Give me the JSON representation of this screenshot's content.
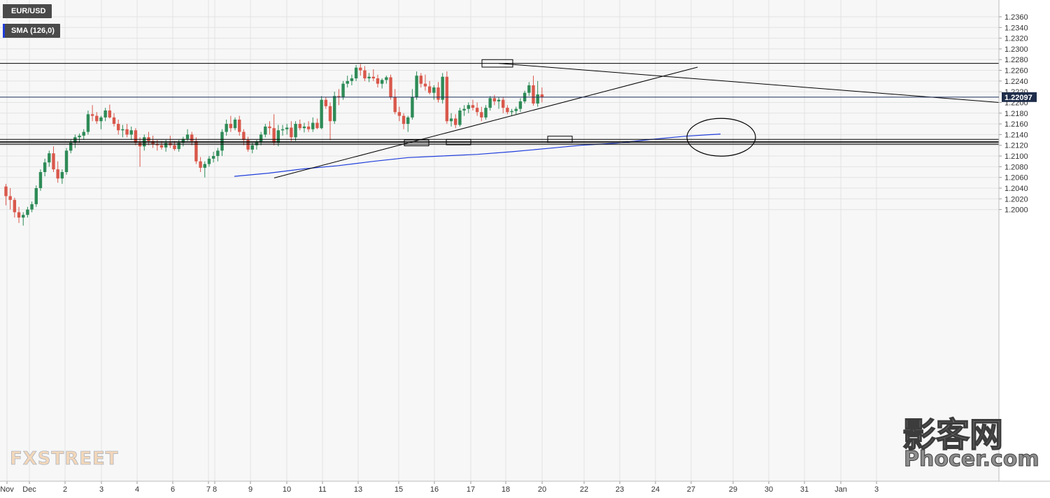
{
  "legend": {
    "symbol": "EUR/USD",
    "sma_label": "SMA (126,0)",
    "symbol_swatch": "#4a4a4a",
    "sma_swatch": "#1f3ddb"
  },
  "colors": {
    "background": "#f7f7f7",
    "axis_background": "#ffffff",
    "grid": "#e3e3e3",
    "bull": "#2e8b57",
    "bear": "#d9584b",
    "sma": "#1f3ddb",
    "price_line": "#1a2d5a",
    "price_tag": "#1f2d4a",
    "drawings": "#000000"
  },
  "watermarks": {
    "left": "FXSTREET",
    "right_cn": "影客网",
    "right_site": "Phocer.com"
  },
  "chart_data": {
    "type": "candlestick",
    "timeframe": "1h",
    "ylim": [
      1.1995,
      1.2375
    ],
    "y_ticks": [
      "1.2360",
      "1.2340",
      "1.2320",
      "1.2300",
      "1.2280",
      "1.2260",
      "1.2240",
      "1.2220",
      "1.2200",
      "1.2180",
      "1.2160",
      "1.2140",
      "1.2120",
      "1.2100",
      "1.2080",
      "1.2060",
      "1.2040",
      "1.2020",
      "1.2000"
    ],
    "x_ticks": [
      "Nov",
      "Dec",
      "2",
      "3",
      "4",
      "6",
      "7",
      "8",
      "9",
      "10",
      "11",
      "13",
      "15",
      "16",
      "17",
      "18",
      "20",
      "22",
      "23",
      "24",
      "27",
      "29",
      "30",
      "31",
      "Jan",
      "3"
    ],
    "grid": true,
    "current_price": "1.22097",
    "series": [
      {
        "kind": "ohlc",
        "values": [
          [
            1.2043,
            1.2048,
            1.2008,
            1.2025
          ],
          [
            1.2025,
            1.204,
            1.2,
            1.2018
          ],
          [
            1.2018,
            1.2022,
            1.1985,
            1.1995
          ],
          [
            1.1995,
            1.2005,
            1.1975,
            1.1985
          ],
          [
            1.1985,
            1.1995,
            1.197,
            1.199
          ],
          [
            1.199,
            1.2005,
            1.1985,
            1.2
          ],
          [
            1.2,
            1.2015,
            1.1995,
            1.201
          ],
          [
            1.201,
            1.2045,
            1.2005,
            1.204
          ],
          [
            1.204,
            1.2075,
            1.2035,
            1.207
          ],
          [
            1.207,
            1.2095,
            1.2062,
            1.2088
          ],
          [
            1.2088,
            1.211,
            1.208,
            1.2105
          ],
          [
            1.2105,
            1.2118,
            1.207,
            1.2075
          ],
          [
            1.2075,
            1.209,
            1.205,
            1.2058
          ],
          [
            1.2058,
            1.2075,
            1.2048,
            1.207
          ],
          [
            1.207,
            1.2115,
            1.2065,
            1.211
          ],
          [
            1.211,
            1.213,
            1.2105,
            1.2125
          ],
          [
            1.2125,
            1.214,
            1.2115,
            1.2135
          ],
          [
            1.2135,
            1.2142,
            1.2125,
            1.2138
          ],
          [
            1.2138,
            1.215,
            1.213,
            1.2145
          ],
          [
            1.2145,
            1.2185,
            1.214,
            1.2178
          ],
          [
            1.2178,
            1.2195,
            1.2165,
            1.2175
          ],
          [
            1.2175,
            1.2182,
            1.216,
            1.2165
          ],
          [
            1.2165,
            1.2175,
            1.215,
            1.2172
          ],
          [
            1.2172,
            1.219,
            1.2165,
            1.2185
          ],
          [
            1.2185,
            1.2196,
            1.217,
            1.2172
          ],
          [
            1.2172,
            1.218,
            1.2155,
            1.216
          ],
          [
            1.216,
            1.2168,
            1.214,
            1.2148
          ],
          [
            1.2148,
            1.2158,
            1.2135,
            1.215
          ],
          [
            1.215,
            1.216,
            1.2135,
            1.214
          ],
          [
            1.214,
            1.2155,
            1.213,
            1.2148
          ],
          [
            1.2148,
            1.2152,
            1.212,
            1.2125
          ],
          [
            1.2125,
            1.2135,
            1.208,
            1.2118
          ],
          [
            1.2118,
            1.214,
            1.211,
            1.2135
          ],
          [
            1.2135,
            1.2145,
            1.212,
            1.2128
          ],
          [
            1.2128,
            1.2138,
            1.2115,
            1.2122
          ],
          [
            1.2122,
            1.213,
            1.211,
            1.212
          ],
          [
            1.212,
            1.2128,
            1.2112,
            1.2116
          ],
          [
            1.2116,
            1.213,
            1.2108,
            1.2124
          ],
          [
            1.2124,
            1.2138,
            1.2115,
            1.212
          ],
          [
            1.212,
            1.2128,
            1.211,
            1.2113
          ],
          [
            1.2113,
            1.213,
            1.2108,
            1.2125
          ],
          [
            1.2125,
            1.2136,
            1.2118,
            1.2132
          ],
          [
            1.2132,
            1.215,
            1.2128,
            1.214
          ],
          [
            1.214,
            1.2145,
            1.212,
            1.2128
          ],
          [
            1.2128,
            1.2135,
            1.2085,
            1.209
          ],
          [
            1.209,
            1.2098,
            1.207,
            1.2078
          ],
          [
            1.2078,
            1.209,
            1.206,
            1.2085
          ],
          [
            1.2085,
            1.21,
            1.208,
            1.2095
          ],
          [
            1.2095,
            1.2108,
            1.2088,
            1.21
          ],
          [
            1.21,
            1.2115,
            1.209,
            1.211
          ],
          [
            1.211,
            1.215,
            1.21,
            1.2145
          ],
          [
            1.2145,
            1.2168,
            1.2138,
            1.216
          ],
          [
            1.216,
            1.2175,
            1.2145,
            1.2152
          ],
          [
            1.2152,
            1.2172,
            1.2148,
            1.2168
          ],
          [
            1.2168,
            1.2175,
            1.2138,
            1.2145
          ],
          [
            1.2145,
            1.215,
            1.212,
            1.213
          ],
          [
            1.213,
            1.2136,
            1.2108,
            1.2112
          ],
          [
            1.2112,
            1.2125,
            1.2105,
            1.212
          ],
          [
            1.212,
            1.213,
            1.2112,
            1.2126
          ],
          [
            1.2126,
            1.2145,
            1.212,
            1.214
          ],
          [
            1.214,
            1.216,
            1.2135,
            1.2155
          ],
          [
            1.2155,
            1.2165,
            1.214,
            1.2152
          ],
          [
            1.2152,
            1.2178,
            1.212,
            1.2125
          ],
          [
            1.2125,
            1.2158,
            1.2118,
            1.2148
          ],
          [
            1.2148,
            1.2158,
            1.2138,
            1.215
          ],
          [
            1.215,
            1.216,
            1.214,
            1.2153
          ],
          [
            1.2153,
            1.2165,
            1.2128,
            1.2135
          ],
          [
            1.2135,
            1.2165,
            1.2128,
            1.216
          ],
          [
            1.216,
            1.2168,
            1.2148,
            1.2152
          ],
          [
            1.2152,
            1.2162,
            1.2144,
            1.2155
          ],
          [
            1.2155,
            1.2165,
            1.2145,
            1.215
          ],
          [
            1.215,
            1.2172,
            1.2145,
            1.2162
          ],
          [
            1.2162,
            1.217,
            1.215,
            1.2152
          ],
          [
            1.2152,
            1.2212,
            1.215,
            1.2205
          ],
          [
            1.2205,
            1.221,
            1.2188,
            1.2193
          ],
          [
            1.2193,
            1.22,
            1.213,
            1.2165
          ],
          [
            1.2165,
            1.222,
            1.216,
            1.2212
          ],
          [
            1.2212,
            1.2225,
            1.2195,
            1.221
          ],
          [
            1.221,
            1.224,
            1.2205,
            1.2235
          ],
          [
            1.2235,
            1.225,
            1.2228,
            1.224
          ],
          [
            1.224,
            1.2252,
            1.2232,
            1.2245
          ],
          [
            1.2245,
            1.227,
            1.224,
            1.2265
          ],
          [
            1.2265,
            1.2272,
            1.225,
            1.226
          ],
          [
            1.226,
            1.2268,
            1.224,
            1.2245
          ],
          [
            1.2245,
            1.2255,
            1.2238,
            1.2248
          ],
          [
            1.2248,
            1.2262,
            1.224,
            1.2245
          ],
          [
            1.2245,
            1.2252,
            1.2228,
            1.2235
          ],
          [
            1.2235,
            1.2245,
            1.2226,
            1.2242
          ],
          [
            1.2242,
            1.225,
            1.2235,
            1.2247
          ],
          [
            1.2247,
            1.2252,
            1.2205,
            1.221
          ],
          [
            1.221,
            1.2225,
            1.2178,
            1.2182
          ],
          [
            1.2182,
            1.2192,
            1.2165,
            1.2175
          ],
          [
            1.2175,
            1.218,
            1.215,
            1.216
          ],
          [
            1.216,
            1.2175,
            1.2145,
            1.2172
          ],
          [
            1.2172,
            1.2225,
            1.2168,
            1.221
          ],
          [
            1.221,
            1.2258,
            1.2205,
            1.225
          ],
          [
            1.225,
            1.2255,
            1.2228,
            1.2235
          ],
          [
            1.2235,
            1.2252,
            1.2222,
            1.223
          ],
          [
            1.223,
            1.224,
            1.2215,
            1.2218
          ],
          [
            1.2218,
            1.2232,
            1.2205,
            1.2228
          ],
          [
            1.2228,
            1.2238,
            1.22,
            1.2205
          ],
          [
            1.2205,
            1.2255,
            1.2198,
            1.2248
          ],
          [
            1.2248,
            1.2258,
            1.216,
            1.2165
          ],
          [
            1.2165,
            1.218,
            1.2155,
            1.217
          ],
          [
            1.217,
            1.2178,
            1.2152,
            1.2158
          ],
          [
            1.2158,
            1.219,
            1.2155,
            1.2185
          ],
          [
            1.2185,
            1.2195,
            1.2175,
            1.2188
          ],
          [
            1.2188,
            1.22,
            1.218,
            1.2195
          ],
          [
            1.2195,
            1.2205,
            1.2185,
            1.219
          ],
          [
            1.219,
            1.22,
            1.2175,
            1.2182
          ],
          [
            1.2182,
            1.2192,
            1.2165,
            1.2172
          ],
          [
            1.2172,
            1.2195,
            1.2168,
            1.219
          ],
          [
            1.219,
            1.2212,
            1.2185,
            1.2208
          ],
          [
            1.2208,
            1.2214,
            1.2195,
            1.2202
          ],
          [
            1.2202,
            1.221,
            1.2188,
            1.2205
          ],
          [
            1.2205,
            1.221,
            1.218,
            1.219
          ],
          [
            1.219,
            1.2195,
            1.2178,
            1.2182
          ],
          [
            1.2182,
            1.2188,
            1.2176,
            1.2184
          ],
          [
            1.2184,
            1.2192,
            1.2178,
            1.2188
          ],
          [
            1.2188,
            1.2208,
            1.2182,
            1.2202
          ],
          [
            1.2202,
            1.2222,
            1.2198,
            1.2218
          ],
          [
            1.2218,
            1.2238,
            1.2212,
            1.2232
          ],
          [
            1.2232,
            1.225,
            1.2194,
            1.2198
          ],
          [
            1.2198,
            1.224,
            1.2192,
            1.2215
          ],
          [
            1.2215,
            1.2228,
            1.22,
            1.221
          ]
        ]
      },
      {
        "name": "SMA (126,0)",
        "kind": "line",
        "values": [
          1.2062,
          1.2068,
          1.2076,
          1.2082,
          1.209,
          1.2097,
          1.21,
          1.2103,
          1.2108,
          1.2114,
          1.212,
          1.2124,
          1.2131,
          1.2137,
          1.2141
        ]
      }
    ]
  }
}
